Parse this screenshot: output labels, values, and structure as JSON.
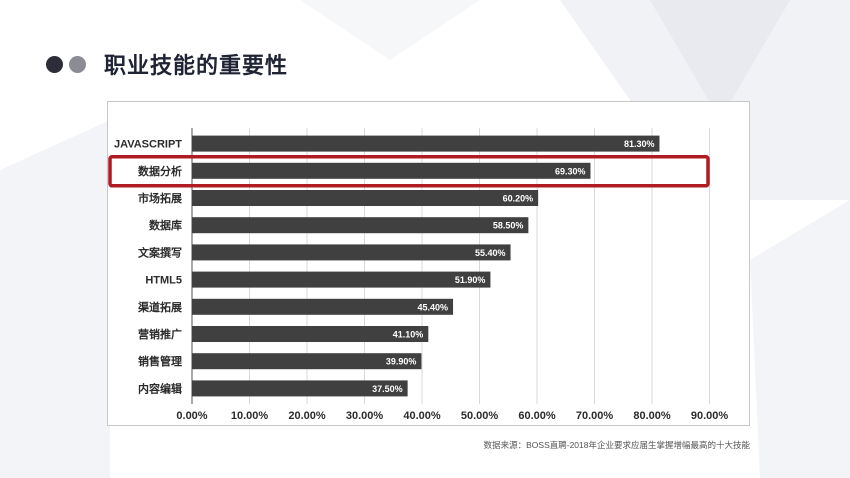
{
  "page": {
    "title": "职业技能的重要性",
    "source": "数据来源：BOSS直聘-2018年企业要求应届生掌握增幅最高的十大技能"
  },
  "chart_data": {
    "type": "bar",
    "orientation": "horizontal",
    "categories": [
      "JAVASCRIPT",
      "数据分析",
      "市场拓展",
      "数据库",
      "文案撰写",
      "HTML5",
      "渠道拓展",
      "营销推广",
      "销售管理",
      "内容编辑"
    ],
    "values": [
      81.3,
      69.3,
      60.2,
      58.5,
      55.4,
      51.9,
      45.4,
      41.1,
      39.9,
      37.5
    ],
    "value_labels": [
      "81.30%",
      "69.30%",
      "60.20%",
      "58.50%",
      "55.40%",
      "51.90%",
      "45.40%",
      "41.10%",
      "39.90%",
      "37.50%"
    ],
    "x_ticks": [
      "0.00%",
      "10.00%",
      "20.00%",
      "30.00%",
      "40.00%",
      "50.00%",
      "60.00%",
      "70.00%",
      "80.00%",
      "90.00%"
    ],
    "xlim": [
      0,
      90
    ],
    "grid": "vertical",
    "highlighted_category": "数据分析",
    "colors": {
      "bar": "#404040",
      "highlight": "#b01c22",
      "grid": "#d9d9d9",
      "axis": "#555555"
    }
  }
}
